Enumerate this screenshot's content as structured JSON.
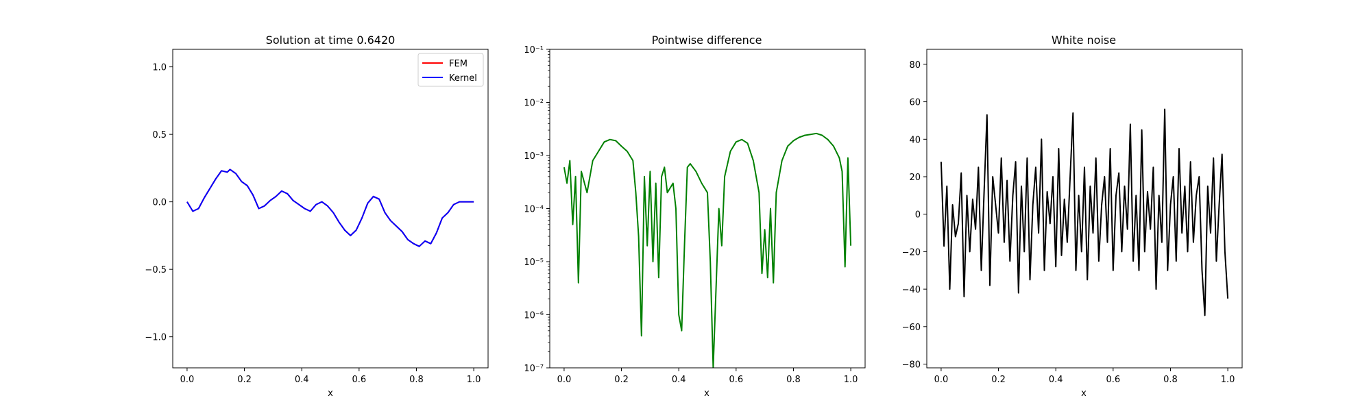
{
  "figure": {
    "background": "#ffffff"
  },
  "chart_data": [
    {
      "type": "line",
      "title": "Solution at time 0.6420",
      "xlabel": "x",
      "ylabel": "",
      "xlim": [
        -0.05,
        1.05
      ],
      "ylim": [
        -1.23,
        1.13
      ],
      "xticks": [
        "0.0",
        "0.2",
        "0.4",
        "0.6",
        "0.8",
        "1.0"
      ],
      "yticks": [
        "−1.0",
        "−0.5",
        "0.0",
        "0.5",
        "1.0"
      ],
      "grid": false,
      "legend": {
        "placement": "top-right",
        "entries": [
          "FEM",
          "Kernel"
        ]
      },
      "x_range": [
        0,
        1
      ],
      "series": [
        {
          "name": "FEM",
          "color": "#ff0000",
          "x": [
            0.0,
            0.02,
            0.04,
            0.06,
            0.08,
            0.1,
            0.12,
            0.14,
            0.15,
            0.17,
            0.19,
            0.21,
            0.23,
            0.25,
            0.27,
            0.29,
            0.31,
            0.33,
            0.35,
            0.37,
            0.39,
            0.41,
            0.43,
            0.45,
            0.47,
            0.49,
            0.51,
            0.53,
            0.55,
            0.57,
            0.59,
            0.61,
            0.63,
            0.65,
            0.67,
            0.69,
            0.71,
            0.73,
            0.75,
            0.77,
            0.79,
            0.81,
            0.83,
            0.85,
            0.87,
            0.89,
            0.91,
            0.93,
            0.95,
            0.97,
            0.99,
            1.0
          ],
          "y": [
            0.0,
            -0.07,
            -0.05,
            0.03,
            0.1,
            0.17,
            0.23,
            0.22,
            0.24,
            0.21,
            0.15,
            0.12,
            0.05,
            -0.05,
            -0.03,
            0.01,
            0.04,
            0.08,
            0.06,
            0.01,
            -0.02,
            -0.05,
            -0.07,
            -0.02,
            0.0,
            -0.03,
            -0.08,
            -0.15,
            -0.21,
            -0.25,
            -0.21,
            -0.12,
            -0.01,
            0.04,
            0.02,
            -0.08,
            -0.14,
            -0.18,
            -0.22,
            -0.28,
            -0.31,
            -0.33,
            -0.29,
            -0.31,
            -0.23,
            -0.12,
            -0.08,
            -0.02,
            0.0,
            0.0,
            0.0,
            0.0
          ]
        },
        {
          "name": "Kernel",
          "color": "#0000ff",
          "x": [
            0.0,
            0.02,
            0.04,
            0.06,
            0.08,
            0.1,
            0.12,
            0.14,
            0.15,
            0.17,
            0.19,
            0.21,
            0.23,
            0.25,
            0.27,
            0.29,
            0.31,
            0.33,
            0.35,
            0.37,
            0.39,
            0.41,
            0.43,
            0.45,
            0.47,
            0.49,
            0.51,
            0.53,
            0.55,
            0.57,
            0.59,
            0.61,
            0.63,
            0.65,
            0.67,
            0.69,
            0.71,
            0.73,
            0.75,
            0.77,
            0.79,
            0.81,
            0.83,
            0.85,
            0.87,
            0.89,
            0.91,
            0.93,
            0.95,
            0.97,
            0.99,
            1.0
          ],
          "y": [
            0.0,
            -0.07,
            -0.05,
            0.03,
            0.1,
            0.17,
            0.23,
            0.22,
            0.24,
            0.21,
            0.15,
            0.12,
            0.05,
            -0.05,
            -0.03,
            0.01,
            0.04,
            0.08,
            0.06,
            0.01,
            -0.02,
            -0.05,
            -0.07,
            -0.02,
            0.0,
            -0.03,
            -0.08,
            -0.15,
            -0.21,
            -0.25,
            -0.21,
            -0.12,
            -0.01,
            0.04,
            0.02,
            -0.08,
            -0.14,
            -0.18,
            -0.22,
            -0.28,
            -0.31,
            -0.33,
            -0.29,
            -0.31,
            -0.23,
            -0.12,
            -0.08,
            -0.02,
            0.0,
            0.0,
            0.0,
            0.0
          ]
        }
      ]
    },
    {
      "type": "line",
      "title": "Pointwise difference",
      "xlabel": "x",
      "ylabel": "",
      "yscale": "log",
      "xlim": [
        -0.05,
        1.05
      ],
      "ylim": [
        1e-07,
        0.1
      ],
      "xticks": [
        "0.0",
        "0.2",
        "0.4",
        "0.6",
        "0.8",
        "1.0"
      ],
      "yticks": [
        "10⁻⁷",
        "10⁻⁶",
        "10⁻⁵",
        "10⁻⁴",
        "10⁻³",
        "10⁻²",
        "10⁻¹"
      ],
      "grid": false,
      "series": [
        {
          "color": "#008000",
          "x": [
            0.0,
            0.01,
            0.02,
            0.03,
            0.04,
            0.05,
            0.06,
            0.08,
            0.1,
            0.12,
            0.14,
            0.16,
            0.18,
            0.2,
            0.22,
            0.24,
            0.25,
            0.26,
            0.27,
            0.28,
            0.29,
            0.3,
            0.31,
            0.32,
            0.33,
            0.34,
            0.35,
            0.36,
            0.38,
            0.39,
            0.4,
            0.41,
            0.42,
            0.43,
            0.44,
            0.46,
            0.48,
            0.5,
            0.51,
            0.52,
            0.53,
            0.54,
            0.55,
            0.56,
            0.58,
            0.6,
            0.62,
            0.64,
            0.66,
            0.68,
            0.69,
            0.7,
            0.71,
            0.72,
            0.73,
            0.74,
            0.76,
            0.78,
            0.8,
            0.82,
            0.84,
            0.86,
            0.88,
            0.9,
            0.92,
            0.94,
            0.96,
            0.97,
            0.98,
            0.99,
            1.0
          ],
          "y": [
            0.0006,
            0.0003,
            0.0008,
            5e-05,
            0.0004,
            4e-06,
            0.0005,
            0.0002,
            0.0008,
            0.0012,
            0.0018,
            0.002,
            0.0019,
            0.0015,
            0.0012,
            0.0008,
            0.0002,
            3e-05,
            4e-07,
            0.0004,
            2e-05,
            0.0005,
            1e-05,
            0.0003,
            5e-06,
            0.0004,
            0.0006,
            0.0002,
            0.0003,
            0.0001,
            1e-06,
            5e-07,
            2e-05,
            0.0006,
            0.0007,
            0.0005,
            0.0003,
            0.0002,
            1e-05,
            1e-07,
            3e-06,
            0.0001,
            2e-05,
            0.0004,
            0.0012,
            0.0018,
            0.002,
            0.0017,
            0.0008,
            0.0002,
            6e-06,
            4e-05,
            5e-06,
            0.0001,
            4e-06,
            0.0002,
            0.0008,
            0.0015,
            0.0019,
            0.0022,
            0.0024,
            0.0025,
            0.0026,
            0.0024,
            0.002,
            0.0015,
            0.0009,
            0.0005,
            8e-06,
            0.0009,
            2e-05
          ]
        }
      ]
    },
    {
      "type": "line",
      "title": "White noise",
      "xlabel": "x",
      "ylabel": "",
      "xlim": [
        -0.05,
        1.05
      ],
      "ylim": [
        -82,
        88
      ],
      "xticks": [
        "0.0",
        "0.2",
        "0.4",
        "0.6",
        "0.8",
        "1.0"
      ],
      "yticks": [
        "−80",
        "−60",
        "−40",
        "−20",
        "0",
        "20",
        "40",
        "60",
        "80"
      ],
      "grid": false,
      "series": [
        {
          "color": "#000000",
          "x": [
            0.0,
            0.01,
            0.02,
            0.03,
            0.04,
            0.05,
            0.06,
            0.07,
            0.08,
            0.09,
            0.1,
            0.11,
            0.12,
            0.13,
            0.14,
            0.15,
            0.16,
            0.17,
            0.18,
            0.19,
            0.2,
            0.21,
            0.22,
            0.23,
            0.24,
            0.25,
            0.26,
            0.27,
            0.28,
            0.29,
            0.3,
            0.31,
            0.32,
            0.33,
            0.34,
            0.35,
            0.36,
            0.37,
            0.38,
            0.39,
            0.4,
            0.41,
            0.42,
            0.43,
            0.44,
            0.45,
            0.46,
            0.47,
            0.48,
            0.49,
            0.5,
            0.51,
            0.52,
            0.53,
            0.54,
            0.55,
            0.56,
            0.57,
            0.58,
            0.59,
            0.6,
            0.61,
            0.62,
            0.63,
            0.64,
            0.65,
            0.66,
            0.67,
            0.68,
            0.69,
            0.7,
            0.71,
            0.72,
            0.73,
            0.74,
            0.75,
            0.76,
            0.77,
            0.78,
            0.79,
            0.8,
            0.81,
            0.82,
            0.83,
            0.84,
            0.85,
            0.86,
            0.87,
            0.88,
            0.89,
            0.9,
            0.91,
            0.92,
            0.93,
            0.94,
            0.95,
            0.96,
            0.97,
            0.98,
            0.99,
            1.0
          ],
          "y": [
            28,
            -17,
            15,
            -40,
            5,
            -12,
            -5,
            22,
            -44,
            10,
            -20,
            8,
            -8,
            25,
            -30,
            12,
            53,
            -38,
            20,
            5,
            -10,
            30,
            -15,
            18,
            -25,
            10,
            28,
            -42,
            15,
            -20,
            30,
            -35,
            5,
            25,
            -10,
            40,
            -30,
            12,
            -5,
            20,
            -28,
            35,
            -22,
            8,
            -15,
            20,
            54,
            -30,
            10,
            -20,
            25,
            -35,
            15,
            -10,
            30,
            -25,
            5,
            20,
            -15,
            35,
            -30,
            10,
            22,
            -20,
            15,
            -8,
            48,
            -25,
            10,
            -30,
            45,
            -20,
            12,
            -8,
            25,
            -40,
            10,
            -15,
            56,
            -30,
            5,
            20,
            -25,
            35,
            -10,
            15,
            -20,
            28,
            -15,
            10,
            20,
            -30,
            -54,
            15,
            -10,
            30,
            -25,
            5,
            32,
            -20,
            -45
          ]
        }
      ]
    }
  ]
}
